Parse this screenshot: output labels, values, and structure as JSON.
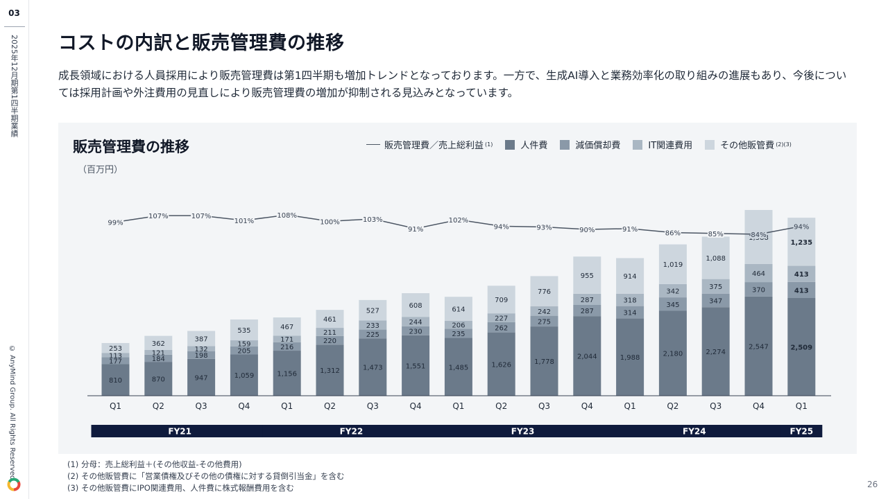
{
  "page": {
    "section_number": "03",
    "report_label": "2025年12月期第1四半期業績",
    "copyright": "© AnyMind Group. All Rights Reserved.",
    "slide_number": "26"
  },
  "header": {
    "title": "コストの内訳と販売管理費の推移",
    "description": "成長領域における人員採用により販売管理費は第1四半期も増加トレンドとなっております。一方で、生成AI導入と業務効率化の取り組みの進展もあり、今後については採用計画や外注費用の見直しにより販売管理費の増加が抑制される見込みとなっています。"
  },
  "chart_panel": {
    "title": "販売管理費の推移",
    "unit": "（百万円）",
    "legend": [
      {
        "label": "販売管理費／売上総利益",
        "note": "(1)",
        "kind": "line",
        "color": "#4b5563"
      },
      {
        "label": "人件費",
        "note": "",
        "kind": "box",
        "color": "#6b7a8a"
      },
      {
        "label": "減価償却費",
        "note": "",
        "kind": "box",
        "color": "#8a99a8"
      },
      {
        "label": "IT関連費用",
        "note": "",
        "kind": "box",
        "color": "#aab7c3"
      },
      {
        "label": "その他販管費",
        "note": "(2)(3)",
        "kind": "box",
        "color": "#cdd6de"
      }
    ]
  },
  "chart_data": {
    "type": "bar",
    "stacked": true,
    "categories": [
      "Q1",
      "Q2",
      "Q3",
      "Q4",
      "Q1",
      "Q2",
      "Q3",
      "Q4",
      "Q1",
      "Q2",
      "Q3",
      "Q4",
      "Q1",
      "Q2",
      "Q3",
      "Q4",
      "Q1"
    ],
    "fiscal_years": [
      {
        "label": "FY21",
        "start": 0,
        "end": 3
      },
      {
        "label": "FY22",
        "start": 4,
        "end": 7
      },
      {
        "label": "FY23",
        "start": 8,
        "end": 11
      },
      {
        "label": "FY24",
        "start": 12,
        "end": 15
      },
      {
        "label": "FY25",
        "start": 16,
        "end": 16
      }
    ],
    "highlight_index": 16,
    "series": [
      {
        "name": "人件費",
        "color": "#6b7a8a",
        "values": [
          810,
          870,
          947,
          1059,
          1156,
          1312,
          1473,
          1551,
          1485,
          1626,
          1778,
          2044,
          1988,
          2180,
          2274,
          2547,
          2509
        ],
        "labels": [
          "810",
          "870",
          "947",
          "1,059",
          "1,156",
          "1,312",
          "1,473",
          "1,551",
          "1,485",
          "1,626",
          "1,778",
          "2,044",
          "1,988",
          "2,180",
          "2,274",
          "2,547",
          "2,509"
        ]
      },
      {
        "name": "減価償却費",
        "color": "#8a99a8",
        "values": [
          177,
          184,
          198,
          205,
          216,
          220,
          225,
          230,
          235,
          262,
          275,
          287,
          314,
          345,
          347,
          370,
          413
        ],
        "labels": [
          "177",
          "184",
          "198",
          "205",
          "216",
          "220",
          "225",
          "230",
          "235",
          "262",
          "275",
          "287",
          "314",
          "345",
          "347",
          "370",
          "413"
        ]
      },
      {
        "name": "IT関連費用",
        "color": "#aab7c3",
        "values": [
          113,
          121,
          132,
          159,
          171,
          211,
          233,
          244,
          206,
          227,
          242,
          287,
          318,
          342,
          375,
          464,
          413
        ],
        "labels": [
          "113",
          "121",
          "132",
          "159",
          "171",
          "211",
          "233",
          "244",
          "206",
          "227",
          "242",
          "287",
          "318",
          "342",
          "375",
          "464",
          "413"
        ]
      },
      {
        "name": "その他販管費",
        "color": "#cdd6de",
        "values": [
          253,
          362,
          387,
          535,
          467,
          461,
          527,
          608,
          614,
          709,
          776,
          955,
          914,
          1019,
          1088,
          1388,
          1235
        ],
        "labels": [
          "253",
          "362",
          "387",
          "535",
          "467",
          "461",
          "527",
          "608",
          "614",
          "709",
          "776",
          "955",
          "914",
          "1,019",
          "1,088",
          "1,388",
          "1,235"
        ]
      }
    ],
    "ratio_line": {
      "name": "販売管理費／売上総利益",
      "values": [
        99,
        107,
        107,
        101,
        108,
        100,
        103,
        91,
        102,
        94,
        93,
        90,
        91,
        86,
        85,
        84,
        94
      ],
      "labels": [
        "99%",
        "107%",
        "107%",
        "101%",
        "108%",
        "100%",
        "103%",
        "91%",
        "102%",
        "94%",
        "93%",
        "90%",
        "91%",
        "86%",
        "85%",
        "84%",
        "94%"
      ]
    }
  },
  "footnotes": [
    "(1) 分母：売上総利益＋(その他収益-その他費用)",
    "(2) その他販管費に「営業債権及びその他の債権に対する貸倒引当金」を含む",
    "(3) その他販管費にIPO関連費用、人件費に株式報酬費用を含む"
  ]
}
